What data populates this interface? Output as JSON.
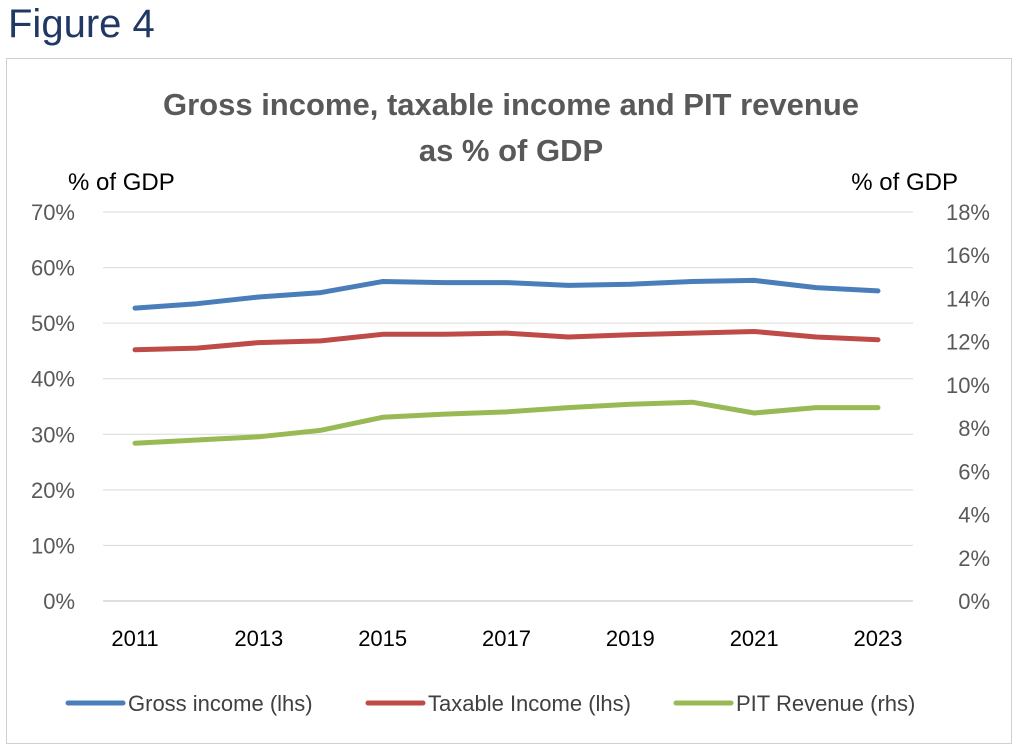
{
  "figure_label": "Figure 4",
  "chart_data": {
    "type": "line",
    "title": "Gross income, taxable income and PIT revenue",
    "subtitle": "as % of GDP",
    "ylabel": "% of GDP",
    "y2label": "% of GDP",
    "x": [
      2011,
      2012,
      2013,
      2014,
      2015,
      2016,
      2017,
      2018,
      2019,
      2020,
      2021,
      2022,
      2023
    ],
    "xtick_labels": [
      "2011",
      "2013",
      "2015",
      "2017",
      "2019",
      "2021",
      "2023"
    ],
    "ylim": [
      0,
      70
    ],
    "y_ticks": [
      "0%",
      "10%",
      "20%",
      "30%",
      "40%",
      "50%",
      "60%",
      "70%"
    ],
    "y2lim": [
      0,
      18
    ],
    "y2_ticks": [
      "0%",
      "2%",
      "4%",
      "6%",
      "8%",
      "10%",
      "12%",
      "14%",
      "16%",
      "18%"
    ],
    "grid": "horizontal",
    "legend_position": "bottom",
    "series": [
      {
        "name": "Gross income (lhs)",
        "axis": "left",
        "color": "#4a7ebb",
        "values": [
          52.7,
          53.5,
          54.7,
          55.5,
          57.5,
          57.3,
          57.3,
          56.8,
          57.0,
          57.5,
          57.7,
          56.4,
          55.8
        ]
      },
      {
        "name": "Taxable Income (lhs)",
        "axis": "left",
        "color": "#be4b48",
        "values": [
          45.2,
          45.5,
          46.5,
          46.8,
          48.0,
          48.0,
          48.2,
          47.5,
          47.9,
          48.2,
          48.5,
          47.5,
          47.0
        ]
      },
      {
        "name": "PIT Revenue (rhs)",
        "axis": "right",
        "color": "#98b954",
        "values": [
          7.3,
          7.45,
          7.6,
          7.9,
          8.5,
          8.65,
          8.75,
          8.95,
          9.1,
          9.2,
          8.7,
          8.95,
          8.95
        ]
      }
    ]
  }
}
